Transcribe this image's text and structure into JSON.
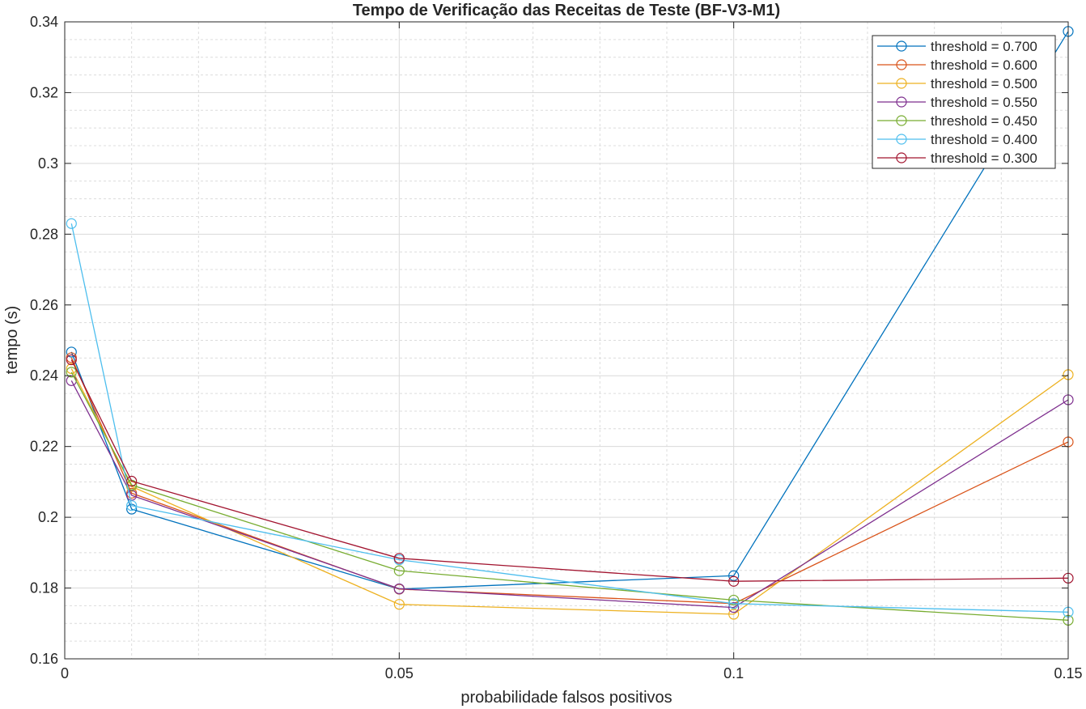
{
  "chart_data": {
    "type": "line",
    "title": "Tempo de Verificação das Receitas de Teste (BF-V3-M1)",
    "xlabel": "probabilidade falsos positivos",
    "ylabel": "tempo (s)",
    "xlim": [
      0,
      0.15
    ],
    "ylim": [
      0.16,
      0.34
    ],
    "xticks": [
      0,
      0.05,
      0.1,
      0.15
    ],
    "xtick_labels": [
      "0",
      "0.05",
      "0.1",
      "0.15"
    ],
    "yticks": [
      0.16,
      0.18,
      0.2,
      0.22,
      0.24,
      0.26,
      0.28,
      0.3,
      0.32,
      0.34
    ],
    "ytick_labels": [
      "0.16",
      "0.18",
      "0.2",
      "0.22",
      "0.24",
      "0.26",
      "0.28",
      "0.3",
      "0.32",
      "0.34"
    ],
    "grid": true,
    "minor_grid": true,
    "legend_position": "top-right",
    "marker": "circle",
    "x": [
      0.001,
      0.01,
      0.05,
      0.1,
      0.15
    ],
    "series": [
      {
        "name": "threshold = 0.700",
        "color": "#0072BD",
        "values": [
          0.2467,
          0.2023,
          0.1797,
          0.1835,
          0.3373
        ]
      },
      {
        "name": "threshold = 0.600",
        "color": "#D95319",
        "values": [
          0.2451,
          0.2068,
          0.1797,
          0.1756,
          0.2213
        ]
      },
      {
        "name": "threshold = 0.500",
        "color": "#EDB120",
        "values": [
          0.242,
          0.2087,
          0.1754,
          0.1726,
          0.2403
        ]
      },
      {
        "name": "threshold = 0.550",
        "color": "#7E2F8E",
        "values": [
          0.2386,
          0.2062,
          0.1798,
          0.1745,
          0.2332
        ]
      },
      {
        "name": "threshold = 0.450",
        "color": "#77AC30",
        "values": [
          0.241,
          0.2091,
          0.1849,
          0.1766,
          0.1709
        ]
      },
      {
        "name": "threshold = 0.400",
        "color": "#4DBEEE",
        "values": [
          0.283,
          0.2033,
          0.188,
          0.1756,
          0.1732
        ]
      },
      {
        "name": "threshold = 0.300",
        "color": "#A2142F",
        "values": [
          0.2445,
          0.2102,
          0.1884,
          0.1819,
          0.1828
        ]
      }
    ]
  }
}
